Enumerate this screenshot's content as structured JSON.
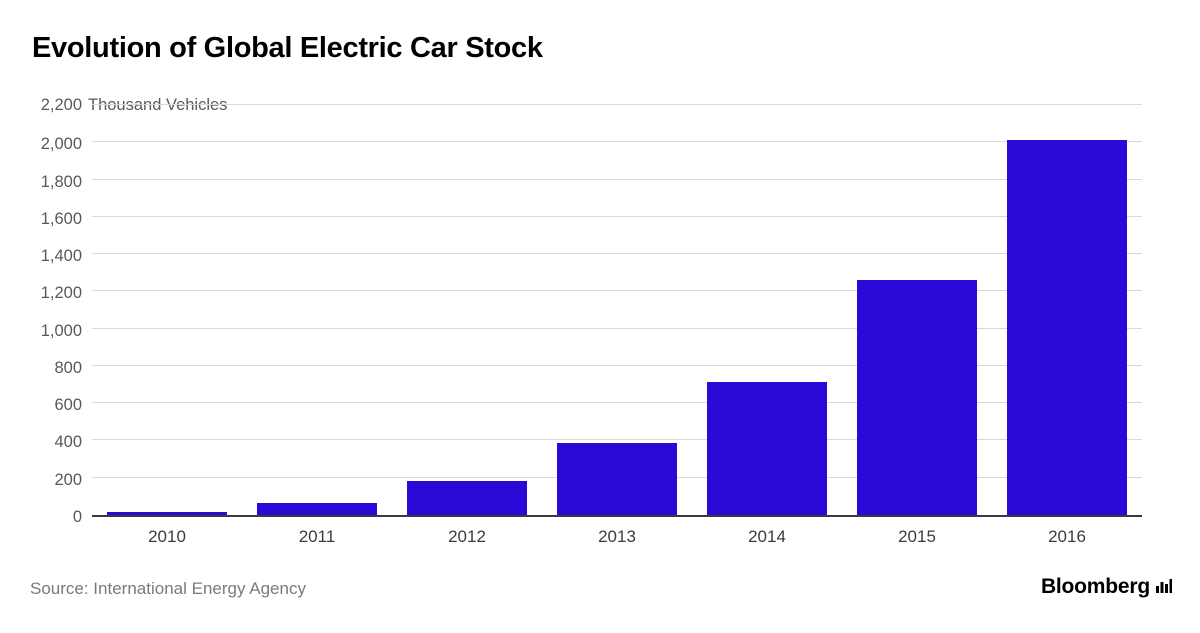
{
  "title": "Evolution of Global Electric Car Stock",
  "source": "Source: International Energy Agency",
  "brand": {
    "name": "Bloomberg"
  },
  "y_axis": {
    "top_tick": "2,200",
    "unit": "Thousand Vehicles",
    "ticks": [
      "0",
      "200",
      "400",
      "600",
      "800",
      "1,000",
      "1,200",
      "1,400",
      "1,600",
      "1,800",
      "2,000"
    ]
  },
  "colors": {
    "bar": "#2b09d6",
    "gridline": "#d9d9d9",
    "axis": "#3a3a3a",
    "tick_text": "#58595b",
    "xtick_text": "#3c3c3c",
    "title": "#000000",
    "source_text": "#7a7a7a",
    "brand_text": "#000000"
  },
  "chart_data": {
    "type": "bar",
    "categories": [
      "2010",
      "2011",
      "2012",
      "2013",
      "2014",
      "2015",
      "2016"
    ],
    "values": [
      17,
      63,
      180,
      385,
      715,
      1260,
      2010
    ],
    "title": "Evolution of Global Electric Car Stock",
    "xlabel": "",
    "ylabel": "Thousand Vehicles",
    "ylim": [
      0,
      2200
    ],
    "ytick_step": 200,
    "grid": true,
    "legend": false,
    "bar_width_fraction": 0.8
  }
}
